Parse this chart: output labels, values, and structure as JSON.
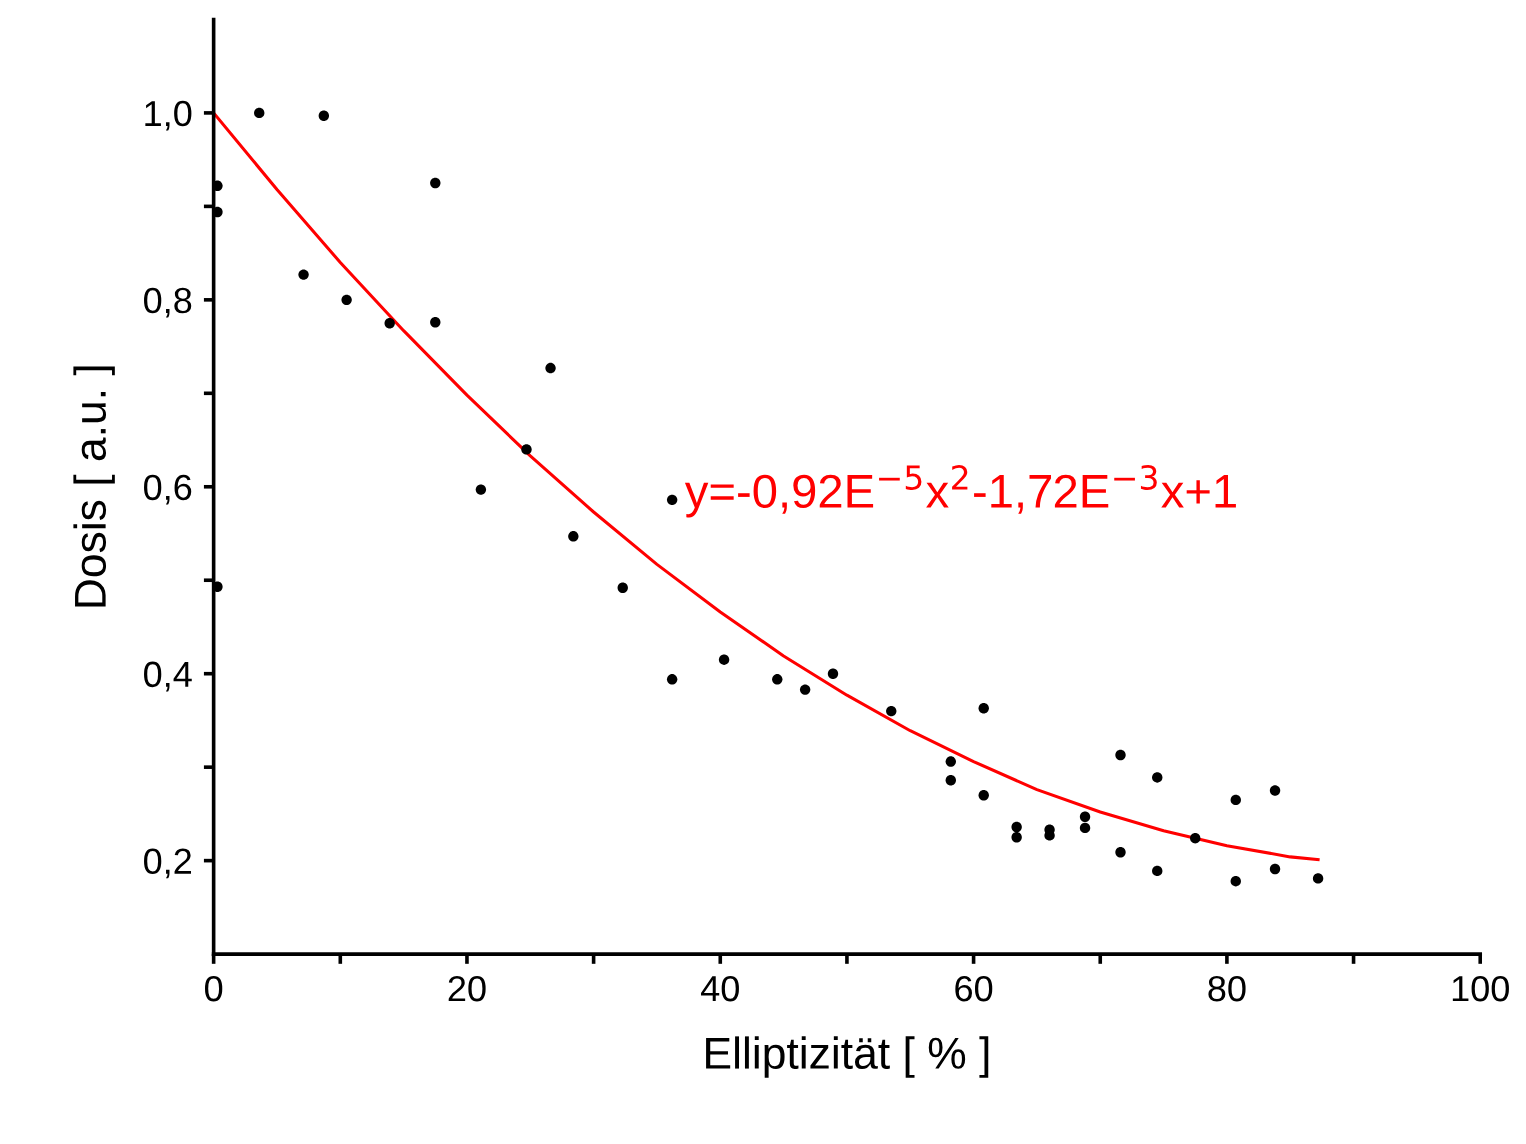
{
  "chart_data": {
    "type": "scatter",
    "xlabel": "Elliptizität [ % ]",
    "ylabel": "Dosis [ a.u. ]",
    "xlim": [
      0,
      100
    ],
    "ylim": [
      0.1,
      1.1
    ],
    "xticks": [
      0,
      {
        "value": 10,
        "label": null
      },
      20,
      {
        "value": 30,
        "label": null
      },
      40,
      {
        "value": 50,
        "label": null
      },
      60,
      {
        "value": 70,
        "label": null
      },
      80,
      {
        "value": 90,
        "label": null
      },
      100
    ],
    "yticks": [
      {
        "value": 0.2,
        "label": "0,2"
      },
      {
        "value": 0.3,
        "label": null
      },
      {
        "value": 0.4,
        "label": "0,4"
      },
      {
        "value": 0.5,
        "label": null
      },
      {
        "value": 0.6,
        "label": "0,6"
      },
      {
        "value": 0.7,
        "label": null
      },
      {
        "value": 0.8,
        "label": "0,8"
      },
      {
        "value": 0.9,
        "label": null
      },
      {
        "value": 1.0,
        "label": "1,0"
      }
    ],
    "grid": false,
    "legend": false,
    "marker": "circle",
    "annotations": [
      "y=-0,92E$^{−5}$x$^{2}$-1,72E$^{−3}$x+1"
    ],
    "series": [
      {
        "color": "#000000",
        "x": [
          0.3,
          0.3,
          0.3,
          3.6,
          8.7,
          7.1,
          10.5,
          13.9,
          17.5,
          17.5,
          26.6,
          24.7,
          21.1,
          36.2,
          28.4,
          32.3,
          36.2,
          40.3,
          44.5,
          46.7,
          48.9,
          53.5,
          58.2,
          58.2,
          60.8,
          60.8,
          63.4,
          63.4,
          66.0,
          66.0,
          68.8,
          68.8,
          71.6,
          71.6,
          74.5,
          74.5,
          77.5,
          80.7,
          80.7,
          83.8,
          83.8,
          87.2
        ],
        "values": [
          0.922,
          0.894,
          0.493,
          1.0,
          0.997,
          0.827,
          0.8,
          0.775,
          0.776,
          0.925,
          0.727,
          0.64,
          0.597,
          0.586,
          0.547,
          0.492,
          0.394,
          0.415,
          0.394,
          0.383,
          0.4,
          0.36,
          0.306,
          0.286,
          0.363,
          0.27,
          0.236,
          0.225,
          0.233,
          0.227,
          0.247,
          0.235,
          0.313,
          0.209,
          0.289,
          0.189,
          0.224,
          0.265,
          0.178,
          0.275,
          0.191,
          0.181
        ]
      },
      {
        "type": "line",
        "color": "#ff0000",
        "marker": "none",
        "line_style": "solid",
        "x": [
          0,
          5,
          10,
          15,
          20,
          25,
          30,
          35,
          40,
          45,
          50,
          55,
          60,
          65,
          70,
          75,
          80,
          85,
          87.2
        ],
        "values": [
          1.0,
          0.918,
          0.84,
          0.767,
          0.698,
          0.633,
          0.573,
          0.517,
          0.466,
          0.419,
          0.377,
          0.339,
          0.306,
          0.276,
          0.252,
          0.232,
          0.216,
          0.204,
          0.201
        ]
      }
    ]
  }
}
